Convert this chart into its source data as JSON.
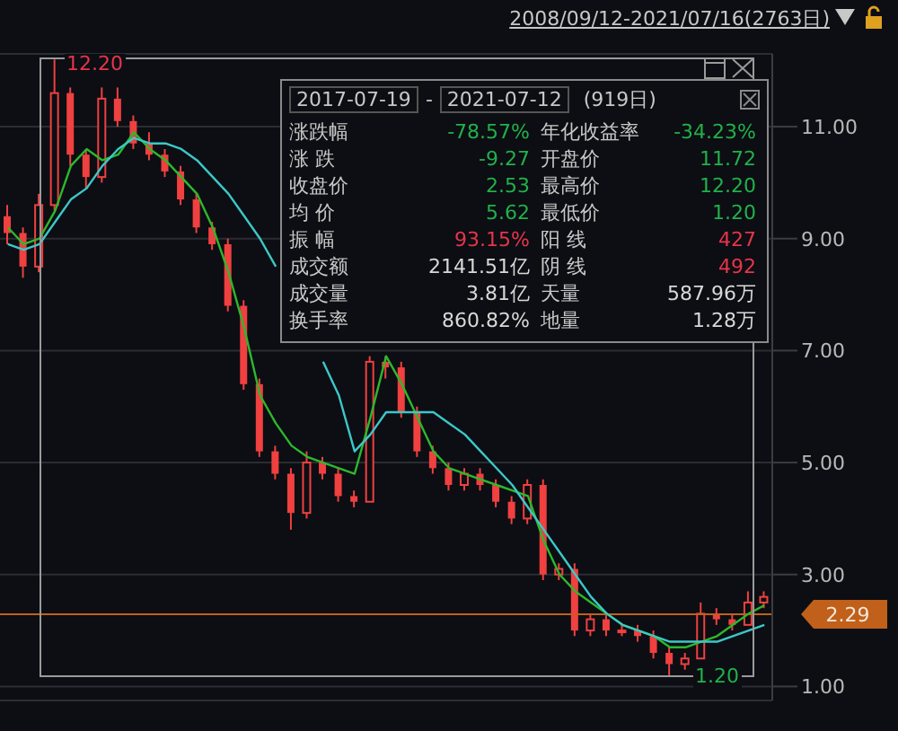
{
  "chart_data": {
    "type": "candlestick",
    "subtitle": "2008/09/12-2021/07/16(2763日)",
    "categories": [
      null,
      null,
      null,
      null,
      null,
      null,
      null,
      null,
      null,
      null,
      null,
      null,
      null,
      null,
      null,
      null,
      null,
      null,
      null,
      null,
      null,
      null,
      null,
      null,
      null,
      null,
      null,
      null,
      null,
      null,
      null,
      null,
      null,
      null,
      null,
      null,
      null,
      null,
      null,
      null,
      null,
      null,
      null,
      null,
      null,
      null,
      null,
      null,
      null
    ],
    "color": "#f04040",
    "ohlc": [
      [
        9.4,
        9.6,
        8.9,
        9.1
      ],
      [
        9.1,
        9.2,
        8.3,
        8.5
      ],
      [
        8.5,
        9.8,
        8.4,
        9.6
      ],
      [
        9.6,
        12.2,
        9.5,
        11.6
      ],
      [
        11.6,
        11.7,
        10.3,
        10.5
      ],
      [
        10.5,
        10.6,
        9.9,
        10.1
      ],
      [
        10.1,
        11.7,
        10.0,
        11.5
      ],
      [
        11.5,
        11.7,
        11.0,
        11.1
      ],
      [
        11.1,
        11.2,
        10.6,
        10.7
      ],
      [
        10.7,
        10.9,
        10.4,
        10.5
      ],
      [
        10.5,
        10.6,
        10.1,
        10.2
      ],
      [
        10.2,
        10.3,
        9.6,
        9.7
      ],
      [
        9.7,
        9.8,
        9.1,
        9.2
      ],
      [
        9.2,
        9.3,
        8.8,
        8.9
      ],
      [
        8.9,
        9.0,
        7.7,
        7.8
      ],
      [
        7.8,
        7.9,
        6.3,
        6.4
      ],
      [
        6.4,
        6.5,
        5.1,
        5.2
      ],
      [
        5.2,
        5.3,
        4.7,
        4.8
      ],
      [
        4.8,
        4.9,
        3.8,
        4.1
      ],
      [
        4.1,
        5.2,
        4.0,
        5.0
      ],
      [
        5.0,
        5.1,
        4.7,
        4.8
      ],
      [
        4.8,
        4.9,
        4.3,
        4.4
      ],
      [
        4.4,
        4.5,
        4.2,
        4.3
      ],
      [
        4.3,
        6.9,
        4.3,
        6.8
      ],
      [
        6.8,
        6.9,
        6.5,
        6.7
      ],
      [
        6.7,
        6.8,
        5.8,
        5.9
      ],
      [
        5.9,
        6.0,
        5.1,
        5.2
      ],
      [
        5.2,
        5.3,
        4.8,
        4.9
      ],
      [
        4.9,
        5.0,
        4.5,
        4.6
      ],
      [
        4.6,
        4.9,
        4.5,
        4.8
      ],
      [
        4.8,
        4.9,
        4.5,
        4.6
      ],
      [
        4.6,
        4.7,
        4.2,
        4.3
      ],
      [
        4.3,
        4.4,
        3.9,
        4.0
      ],
      [
        4.0,
        4.7,
        3.9,
        4.6
      ],
      [
        4.6,
        4.7,
        2.9,
        3.0
      ],
      [
        3.0,
        3.2,
        2.9,
        3.1
      ],
      [
        3.1,
        3.2,
        1.9,
        2.0
      ],
      [
        2.0,
        2.3,
        1.9,
        2.2
      ],
      [
        2.2,
        2.3,
        1.9,
        2.0
      ],
      [
        2.0,
        2.1,
        1.9,
        2.0
      ],
      [
        2.0,
        2.1,
        1.8,
        1.9
      ],
      [
        1.9,
        2.0,
        1.5,
        1.6
      ],
      [
        1.6,
        1.7,
        1.2,
        1.4
      ],
      [
        1.4,
        1.6,
        1.3,
        1.5
      ],
      [
        1.5,
        2.5,
        1.5,
        2.3
      ],
      [
        2.3,
        2.4,
        2.1,
        2.2
      ],
      [
        2.2,
        2.3,
        2.0,
        2.1
      ],
      [
        2.1,
        2.7,
        2.1,
        2.5
      ],
      [
        2.5,
        2.7,
        2.4,
        2.6
      ]
    ],
    "series": [
      {
        "type": "line",
        "color": "#2db82d",
        "values": [
          9.2,
          8.9,
          9.0,
          9.5,
          10.3,
          10.6,
          10.4,
          10.5,
          10.9,
          10.6,
          10.4,
          10.1,
          9.8,
          9.2,
          8.4,
          7.4,
          6.2,
          5.7,
          5.3,
          5.1,
          5.0,
          4.9,
          4.8,
          5.8,
          6.9,
          6.4,
          5.8,
          5.2,
          4.9,
          4.8,
          4.7,
          4.6,
          4.5,
          4.4,
          3.6,
          3.0,
          2.7,
          2.5,
          2.3,
          2.1,
          2.0,
          1.9,
          1.7,
          1.7,
          1.8,
          1.9,
          2.1,
          2.3,
          2.45
        ]
      },
      {
        "type": "line",
        "color": "#3cc8c8",
        "values": [
          8.9,
          8.8,
          8.9,
          9.3,
          9.7,
          9.9,
          10.3,
          10.6,
          10.8,
          10.7,
          10.7,
          10.6,
          10.4,
          10.1,
          9.8,
          9.4,
          9.0,
          8.5,
          null,
          null,
          6.8,
          6.2,
          5.2,
          5.5,
          5.9,
          5.9,
          5.9,
          5.9,
          5.7,
          5.5,
          5.2,
          4.9,
          4.6,
          4.2,
          3.8,
          3.4,
          3.0,
          2.6,
          2.3,
          2.1,
          2.0,
          1.9,
          1.8,
          1.8,
          1.8,
          1.8,
          1.9,
          2.0,
          2.1
        ]
      }
    ],
    "ylim": [
      0.75,
      12.3
    ],
    "yticks": [
      {
        "value": 1,
        "label": "1.00"
      },
      {
        "value": 3,
        "label": "3.00"
      },
      {
        "value": 5,
        "label": "5.00"
      },
      {
        "value": 7,
        "label": "7.00"
      },
      {
        "value": 9,
        "label": "9.00"
      },
      {
        "value": 11,
        "label": "11.00"
      }
    ],
    "grid": "y",
    "legend": false,
    "line_style": "solid",
    "marker": "none",
    "ref_lines": [
      {
        "axis": "y",
        "value": 2.29,
        "label": "2.29",
        "color": "#c0601a"
      }
    ],
    "annotations": [
      "12.20",
      "1.20",
      "2017-07-19",
      "-",
      "2021-07-12",
      "(919日)",
      "涨跌幅",
      "-78.57%",
      "年化收益率",
      "-34.23%",
      "涨 跌",
      "-9.27",
      "开盘价",
      "11.72",
      "收盘价",
      "2.53",
      "最高价",
      "12.20",
      "均 价",
      "5.62",
      "最低价",
      "1.20",
      "振 幅",
      "93.15%",
      "阳 线",
      "427",
      "成交额",
      "2141.51亿",
      "阴 线",
      "492",
      "成交量",
      "3.81亿",
      "天量",
      "587.96万",
      "换手率",
      "860.82%",
      "地量",
      "1.28万"
    ]
  }
}
